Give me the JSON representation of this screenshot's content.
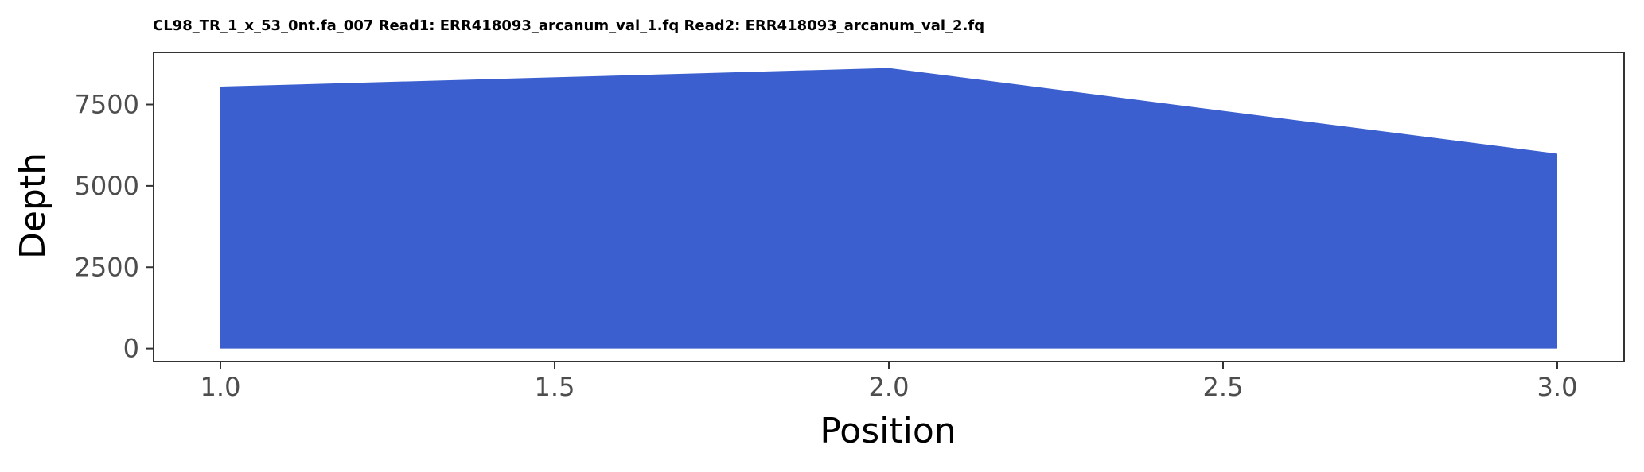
{
  "chart_data": {
    "type": "area",
    "title": "CL98_TR_1_x_53_0nt.fa_007 Read1: ERR418093_arcanum_val_1.fq Read2: ERR418093_arcanum_val_2.fq",
    "xlabel": "Position",
    "ylabel": "Depth",
    "x": [
      1.0,
      2.0,
      3.0
    ],
    "series": [
      {
        "values": [
          8050,
          8620,
          5990
        ]
      }
    ],
    "xlim": [
      0.9,
      3.1
    ],
    "ylim": [
      -400,
      9100
    ],
    "xticks": [
      1.0,
      1.5,
      2.0,
      2.5,
      3.0
    ],
    "xtick_labels": [
      "1.0",
      "1.5",
      "2.0",
      "2.5",
      "3.0"
    ],
    "yticks": [
      0,
      2500,
      5000,
      7500
    ],
    "ytick_labels": [
      "0",
      "2500",
      "5000",
      "7500"
    ],
    "fill_color": "#3b5fcf",
    "grid": false,
    "legend": "none"
  }
}
